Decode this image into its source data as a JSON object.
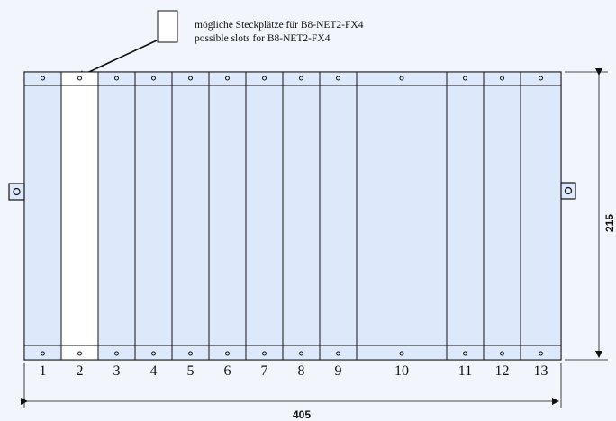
{
  "legend": {
    "line1": "mögliche Steckplätze für B8-NET2-FX4",
    "line2": "possible slots for B8-NET2-FX4"
  },
  "dimensions": {
    "width": "405",
    "height": "215"
  },
  "slots": [
    {
      "label": "1",
      "highlighted": false
    },
    {
      "label": "2",
      "highlighted": true
    },
    {
      "label": "3",
      "highlighted": false
    },
    {
      "label": "4",
      "highlighted": false
    },
    {
      "label": "5",
      "highlighted": false
    },
    {
      "label": "6",
      "highlighted": false
    },
    {
      "label": "7",
      "highlighted": false
    },
    {
      "label": "8",
      "highlighted": false
    },
    {
      "label": "9",
      "highlighted": false
    },
    {
      "label": "10",
      "highlighted": false
    },
    {
      "label": "11",
      "highlighted": false
    },
    {
      "label": "12",
      "highlighted": false
    },
    {
      "label": "13",
      "highlighted": false
    }
  ],
  "colors": {
    "rack_fill": "#dde9fb",
    "highlight_fill": "#ffffff",
    "stroke": "#111111",
    "background": "#f2f5fb"
  }
}
